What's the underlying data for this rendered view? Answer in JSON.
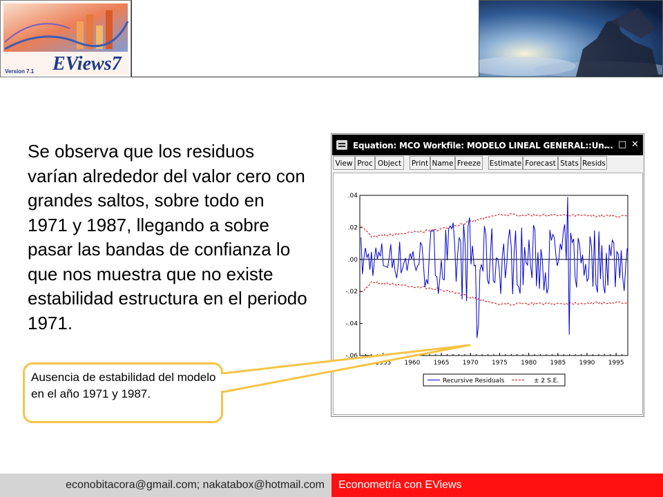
{
  "header": {
    "left_logo": {
      "text": "EViews7",
      "version": "Version 7.1"
    },
    "right_image": "statue-over-clouds"
  },
  "body_text": "Se observa que los residuos varían alrededor del valor cero con grandes saltos, sobre todo en 1971 y 1987, llegando a sobre pasar las bandas de confianza lo que nos muestra que no existe estabilidad estructura en el periodo 1971.",
  "window": {
    "title": "Equation: MCO   Workfile: MODELO LINEAL GENERAL::Un...",
    "controls": [
      "_",
      "□",
      "✕"
    ],
    "toolbar": [
      "View",
      "Proc",
      "Object",
      "Print",
      "Name",
      "Freeze",
      "Estimate",
      "Forecast",
      "Stats",
      "Resids"
    ]
  },
  "chart_data": {
    "type": "line",
    "x": [
      1951,
      1997
    ],
    "xticks": [
      "1955",
      "1960",
      "1965",
      "1970",
      "1975",
      "1980",
      "1985",
      "1990",
      "1995"
    ],
    "ylim": [
      -0.06,
      0.04
    ],
    "yticks": [
      ".04",
      ".02",
      ".00",
      "-.02",
      "-.04",
      "-.06"
    ],
    "series": [
      {
        "name": "Recursive Residuals",
        "color": "#0000cc",
        "style": "solid"
      },
      {
        "name": "± 2 S.E.",
        "color": "#d40000",
        "style": "dashed"
      }
    ],
    "notable_values": [
      {
        "x": 1971,
        "y": -0.049
      },
      {
        "x": 1987,
        "y": -0.047
      },
      {
        "x": 1987,
        "y": 0.039
      }
    ],
    "legend_position": "bottom-center",
    "grid": false
  },
  "callout": {
    "text": "Ausencia de estabilidad del modelo en el año 1971 y 1987."
  },
  "footer": {
    "left": "econobitacora@gmail.com;  nakatabox@hotmail.com",
    "right": "Econometría con EViews"
  },
  "colors": {
    "footer_right_bg": "#ff1111",
    "footer_left_bg": "#d4d4d4",
    "callout_border": "#f6c445"
  }
}
